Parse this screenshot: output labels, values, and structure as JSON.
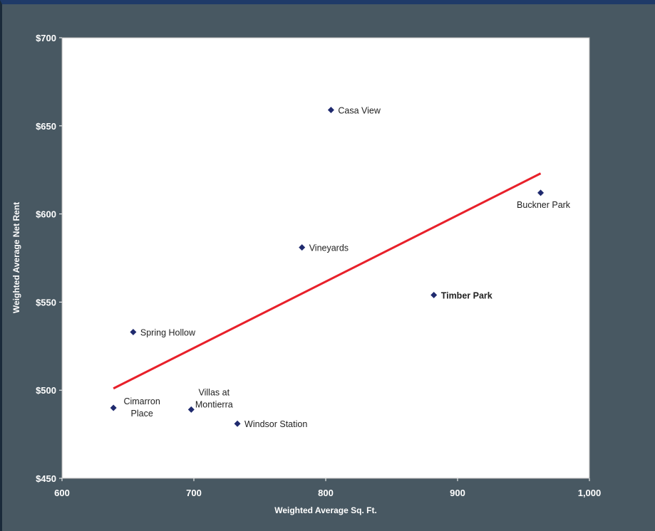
{
  "chart_data": {
    "type": "scatter",
    "title": "",
    "xlabel": "Weighted Average Sq. Ft.",
    "ylabel": "Weighted Average Net Rent",
    "xlim": [
      600,
      1000
    ],
    "ylim": [
      450,
      700
    ],
    "x_ticks": [
      600,
      700,
      800,
      900,
      1000
    ],
    "x_tick_labels": [
      "600",
      "700",
      "800",
      "900",
      "1,000"
    ],
    "y_ticks": [
      450,
      500,
      550,
      600,
      650,
      700
    ],
    "y_tick_labels": [
      "$450",
      "$500",
      "$550",
      "$600",
      "$650",
      "$700"
    ],
    "grid": false,
    "marker_color": "#1f2a6e",
    "highlight_color": "#e8202a",
    "trendline_color": "#e8202a",
    "points": [
      {
        "label": "Casa View",
        "x": 804,
        "y": 659,
        "highlight": false
      },
      {
        "label": "Buckner Park",
        "x": 963,
        "y": 612,
        "highlight": false
      },
      {
        "label": "Vineyards",
        "x": 782,
        "y": 581,
        "highlight": false
      },
      {
        "label": "Timber Park",
        "x": 882,
        "y": 554,
        "highlight": true
      },
      {
        "label": "Spring Hollow",
        "x": 654,
        "y": 533,
        "highlight": false
      },
      {
        "label": "Cimarron Place",
        "x": 639,
        "y": 490,
        "highlight": false
      },
      {
        "label": "Villas at Montierra",
        "x": 698,
        "y": 489,
        "highlight": false
      },
      {
        "label": "Windsor Station",
        "x": 733,
        "y": 481,
        "highlight": false
      }
    ],
    "trendline": {
      "x": [
        639,
        963
      ],
      "y": [
        501,
        623
      ]
    }
  }
}
